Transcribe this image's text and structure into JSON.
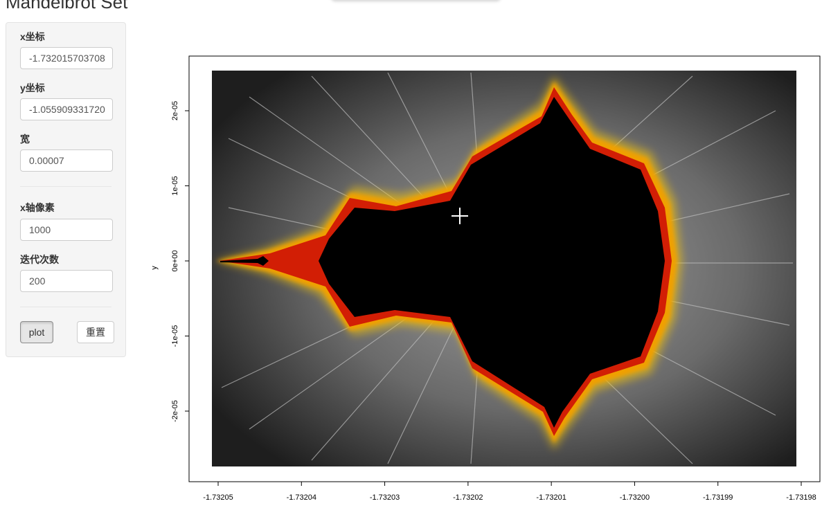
{
  "app": {
    "title": "Mandelbrot Set"
  },
  "sidebar": {
    "fields": [
      {
        "label": "x坐标",
        "value": "-1.732015703708"
      },
      {
        "label": "y坐标",
        "value": "-1.055909331720"
      },
      {
        "label": "宽",
        "value": "0.00007"
      },
      {
        "label": "x轴像素",
        "value": "1000"
      },
      {
        "label": "迭代次数",
        "value": "200"
      }
    ],
    "buttons": {
      "plot": "plot",
      "reset": "重置"
    }
  },
  "chart_data": {
    "type": "heatmap",
    "title": "",
    "xlabel": "",
    "ylabel": "y",
    "x_ticks": [
      "-1.73205",
      "-1.73204",
      "-1.73203",
      "-1.73202",
      "-1.73201",
      "-1.73200",
      "-1.73199",
      "-1.73198"
    ],
    "y_ticks": [
      "-2e-05",
      "-1e-05",
      "0e+00",
      "1e-05",
      "2e-05"
    ],
    "xlim": [
      -1.732051,
      -1.73198
    ],
    "ylim": [
      -2.7e-05,
      2.5e-05
    ],
    "grid": false,
    "colors": {
      "interior": "#000000",
      "near": "#d21e05",
      "mid": "#fcc800",
      "far": "#1e1e1e"
    },
    "cursor": "crosshair"
  }
}
